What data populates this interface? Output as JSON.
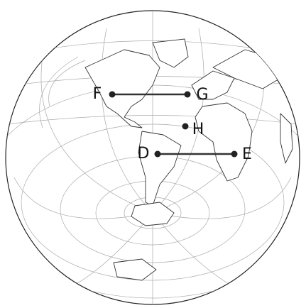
{
  "points": [
    {
      "label": "F"
    },
    {
      "label": "G"
    },
    {
      "label": "H"
    },
    {
      "label": "D"
    },
    {
      "label": "E"
    }
  ]
}
